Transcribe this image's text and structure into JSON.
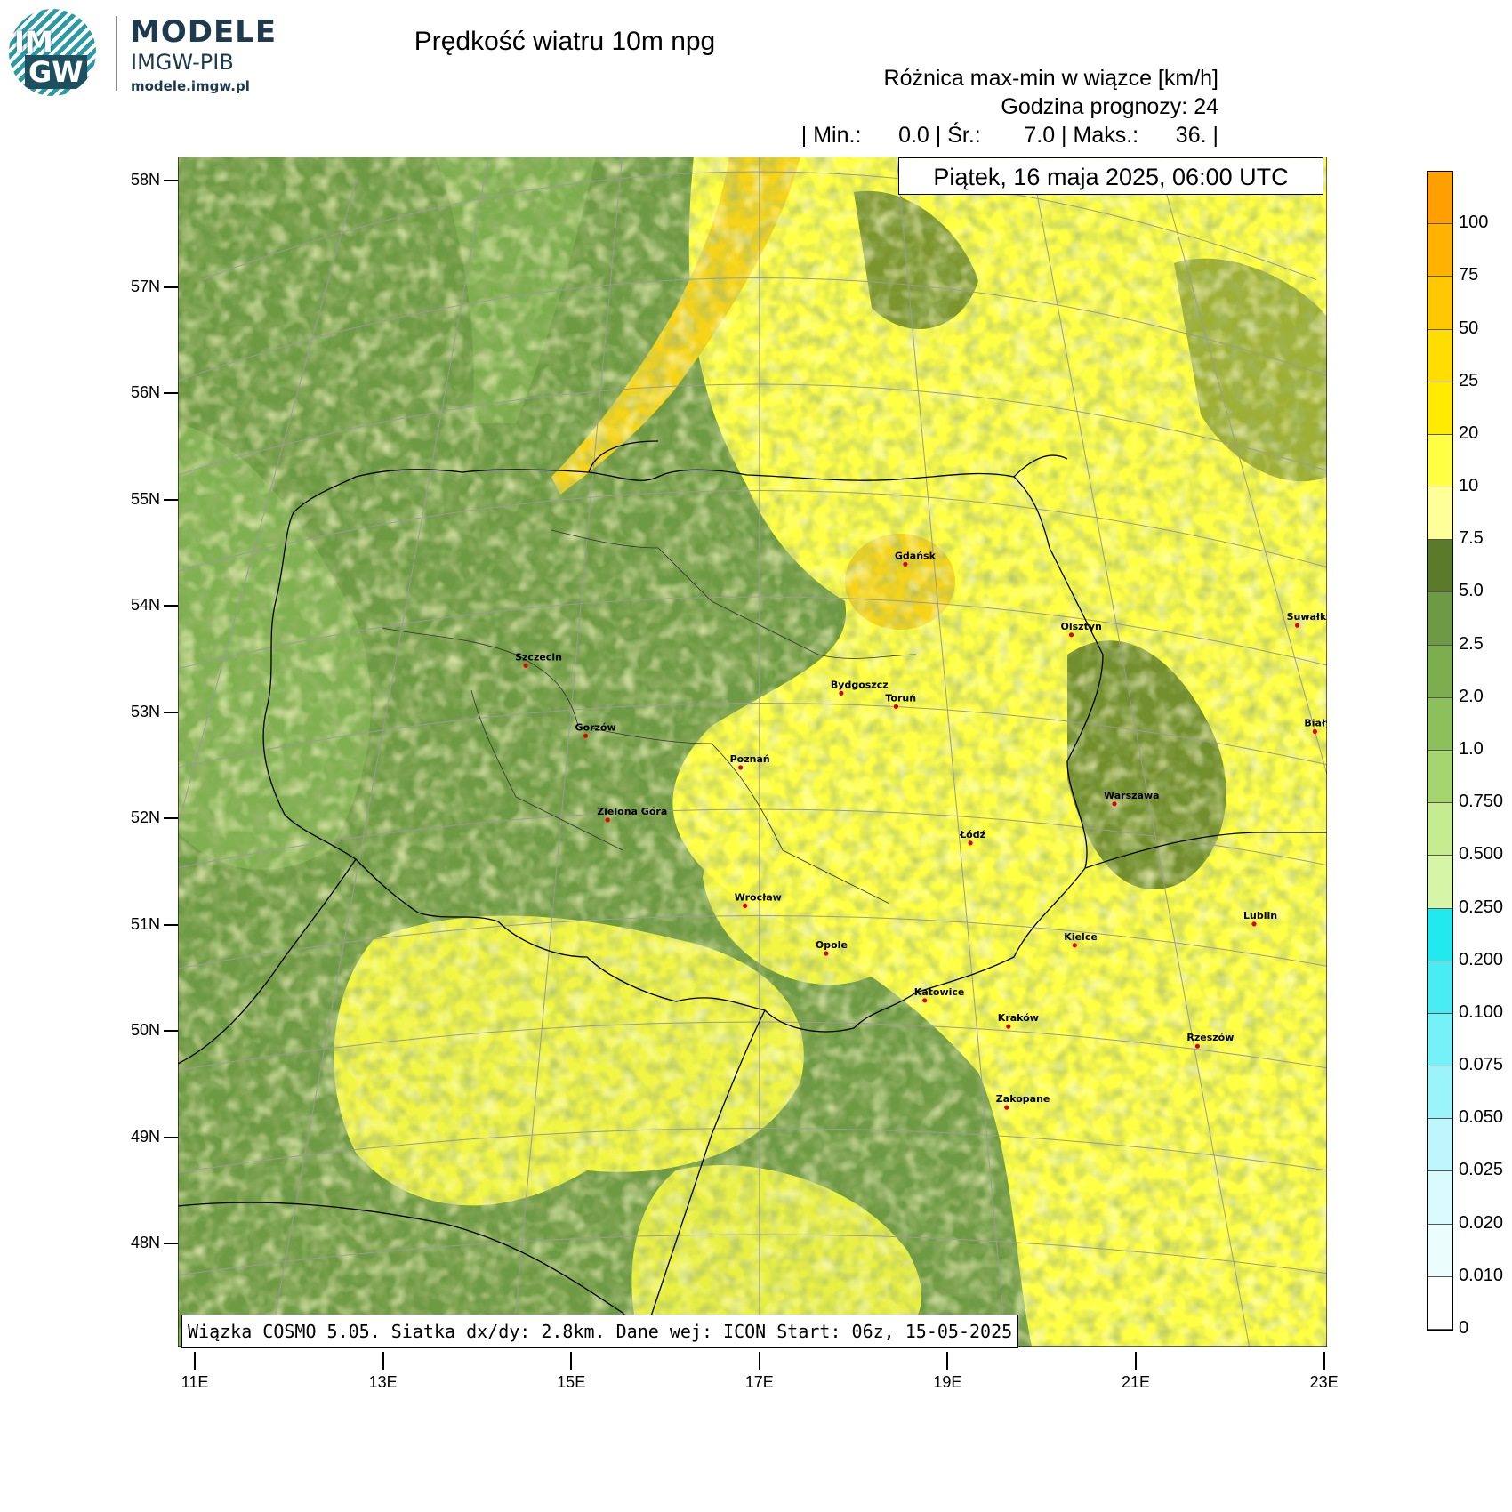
{
  "logo": {
    "circle_top": "IM",
    "circle_bottom": "GW",
    "title": "MODELE",
    "subtitle": "IMGW-PIB",
    "url": "modele.imgw.pl"
  },
  "header": {
    "title": "Prędkość wiatru 10m npg",
    "subtitle": "Różnica max-min w wiązce [km/h]",
    "forecast_hour": "Godzina prognozy: 24",
    "stats": "| Min.:      0.0 | Śr.:       7.0 | Maks.:      36. |",
    "date": "Piątek, 16 maja 2025, 06:00 UTC"
  },
  "footer": "Wiązka COSMO 5.05. Siatka dx/dy: 2.8km. Dane wej: ICON Start: 06z, 15-05-2025",
  "colors": {
    "green_dark": "#5b7a2a",
    "green_mid": "#6f9a45",
    "green_light": "#8cc05a",
    "yellow_pale": "#ffff99",
    "yellow": "#ffff44",
    "gold": "#f5d41a",
    "orange": "#ffa000"
  },
  "axes": {
    "lat_labels": [
      "58N",
      "57N",
      "56N",
      "55N",
      "54N",
      "53N",
      "52N",
      "51N",
      "50N",
      "49N",
      "48N"
    ],
    "lon_labels": [
      "11E",
      "13E",
      "15E",
      "17E",
      "19E",
      "21E",
      "23E"
    ]
  },
  "colorbar": {
    "labels": [
      "100",
      "75",
      "50",
      "25",
      "20",
      "10",
      "7.5",
      "5.0",
      "2.5",
      "2.0",
      "1.0",
      "0.750",
      "0.500",
      "0.250",
      "0.200",
      "0.100",
      "0.075",
      "0.050",
      "0.025",
      "0.020",
      "0.010",
      "0"
    ],
    "colors": [
      "#ffa000",
      "#ffb300",
      "#ffc800",
      "#ffdd00",
      "#ffea00",
      "#ffff44",
      "#ffff99",
      "#5b7a2a",
      "#6f9a45",
      "#7cad4e",
      "#8cc05a",
      "#a3d46d",
      "#c4ec8e",
      "#d6f5a6",
      "#22e8f0",
      "#4aecf4",
      "#74f0f7",
      "#9af4f9",
      "#bdf7fb",
      "#d8fafd",
      "#ecfdfe",
      "#ffffff"
    ]
  },
  "cities": [
    {
      "name": "Gdańsk",
      "lon": 18.65,
      "lat": 54.35
    },
    {
      "name": "Olsztyn",
      "lon": 20.48,
      "lat": 53.78
    },
    {
      "name": "Suwałki",
      "lon": 22.93,
      "lat": 54.1
    },
    {
      "name": "Białystok",
      "lon": 23.16,
      "lat": 53.13
    },
    {
      "name": "Szczecin",
      "lon": 14.55,
      "lat": 53.43
    },
    {
      "name": "Bydgoszcz",
      "lon": 18.0,
      "lat": 53.12
    },
    {
      "name": "Toruń",
      "lon": 18.6,
      "lat": 53.01
    },
    {
      "name": "Gorzów",
      "lon": 15.23,
      "lat": 52.74
    },
    {
      "name": "Poznań",
      "lon": 16.93,
      "lat": 52.41
    },
    {
      "name": "Warszawa",
      "lon": 21.01,
      "lat": 52.23
    },
    {
      "name": "Zielona Góra",
      "lon": 15.5,
      "lat": 51.94
    },
    {
      "name": "Łódź",
      "lon": 19.46,
      "lat": 51.76
    },
    {
      "name": "Lublin",
      "lon": 22.57,
      "lat": 51.25
    },
    {
      "name": "Wrocław",
      "lon": 17.03,
      "lat": 51.11
    },
    {
      "name": "Kielce",
      "lon": 20.63,
      "lat": 50.87
    },
    {
      "name": "Opole",
      "lon": 17.93,
      "lat": 50.67
    },
    {
      "name": "Rzeszów",
      "lon": 22.0,
      "lat": 50.04
    },
    {
      "name": "Katowice",
      "lon": 19.02,
      "lat": 50.26
    },
    {
      "name": "Kraków",
      "lon": 19.94,
      "lat": 50.06
    },
    {
      "name": "Zakopane",
      "lon": 19.95,
      "lat": 49.3
    }
  ]
}
